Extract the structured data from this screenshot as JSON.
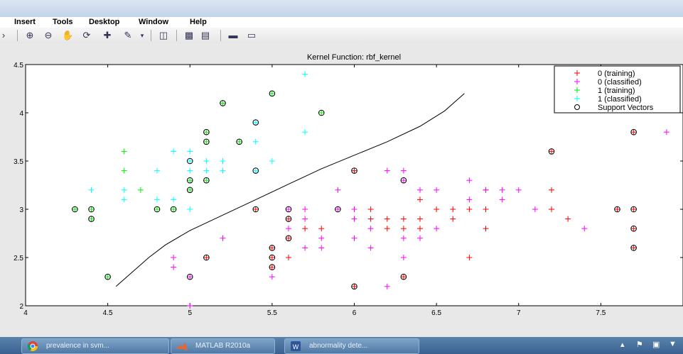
{
  "menu": {
    "items": [
      "Insert",
      "Tools",
      "Desktop",
      "Window",
      "Help"
    ]
  },
  "toolbar": {
    "icons": [
      "zoom-in-icon",
      "zoom-out-icon",
      "pan-hand-icon",
      "rotate-3d-icon",
      "data-cursor-icon",
      "brush-icon",
      "dropdown-arrow-icon",
      "link-plot-icon",
      "colorbar-icon",
      "legend-icon",
      "hide-plot-tools-icon",
      "show-plot-tools-icon"
    ]
  },
  "taskbar": {
    "items": [
      {
        "label": "prevalence in svm...",
        "icon": "chrome-icon"
      },
      {
        "label": "MATLAB R2010a",
        "icon": "matlab-icon"
      },
      {
        "label": "abnormality dete...",
        "icon": "word-icon"
      }
    ]
  },
  "colors": {
    "class0": "#ff0000",
    "class0_classified": "#ff00ff",
    "class1": "#00ee00",
    "class1_classified": "#00ffff",
    "support": "#000000"
  },
  "chart_data": {
    "type": "scatter",
    "title": "Kernel Function: rbf_kernel",
    "xlabel": "",
    "ylabel": "",
    "xlim": [
      4,
      8
    ],
    "ylim": [
      2,
      4.5
    ],
    "xticks": [
      4,
      4.5,
      5,
      5.5,
      6,
      6.5,
      7,
      7.5
    ],
    "yticks": [
      2,
      2.5,
      3,
      3.5,
      4,
      4.5
    ],
    "xtick_labels": [
      "4",
      "4.5",
      "5",
      "5.5",
      "6",
      "6.5",
      "7",
      "7.5"
    ],
    "ytick_labels": [
      "2",
      "2.5",
      "3",
      "3.5",
      "4",
      "4.5"
    ],
    "legend_position": "top-right",
    "series": [
      {
        "name": "0 (training)",
        "marker": "+",
        "color": "#ff0000",
        "points": [
          [
            5.1,
            2.5
          ],
          [
            5.4,
            3.0
          ],
          [
            5.5,
            2.4
          ],
          [
            5.5,
            2.5
          ],
          [
            5.5,
            2.6
          ],
          [
            5.6,
            2.5
          ],
          [
            5.6,
            2.7
          ],
          [
            5.6,
            2.9
          ],
          [
            5.7,
            2.8
          ],
          [
            5.8,
            2.8
          ],
          [
            6.0,
            2.2
          ],
          [
            6.0,
            3.4
          ],
          [
            6.1,
            2.9
          ],
          [
            6.1,
            3.0
          ],
          [
            6.2,
            2.8
          ],
          [
            6.2,
            2.9
          ],
          [
            6.3,
            2.3
          ],
          [
            6.3,
            2.8
          ],
          [
            6.3,
            2.9
          ],
          [
            6.4,
            2.8
          ],
          [
            6.4,
            2.9
          ],
          [
            6.4,
            3.1
          ],
          [
            6.5,
            3.0
          ],
          [
            6.6,
            2.9
          ],
          [
            6.6,
            3.0
          ],
          [
            6.7,
            2.5
          ],
          [
            6.7,
            3.0
          ],
          [
            6.8,
            2.8
          ],
          [
            6.8,
            3.0
          ],
          [
            6.8,
            3.2
          ],
          [
            7.2,
            3.0
          ],
          [
            7.2,
            3.2
          ],
          [
            7.2,
            3.6
          ],
          [
            7.3,
            2.9
          ],
          [
            7.6,
            3.0
          ],
          [
            7.7,
            2.6
          ],
          [
            7.7,
            2.8
          ],
          [
            7.7,
            3.0
          ],
          [
            7.7,
            3.8
          ]
        ]
      },
      {
        "name": "0 (classified)",
        "marker": "+",
        "color": "#ff00ff",
        "points": [
          [
            4.9,
            2.4
          ],
          [
            4.9,
            2.5
          ],
          [
            5.0,
            2.0
          ],
          [
            5.0,
            2.3
          ],
          [
            5.2,
            2.7
          ],
          [
            5.5,
            2.3
          ],
          [
            5.6,
            2.8
          ],
          [
            5.6,
            3.0
          ],
          [
            5.7,
            2.6
          ],
          [
            5.7,
            2.9
          ],
          [
            5.7,
            3.0
          ],
          [
            5.8,
            2.6
          ],
          [
            5.8,
            2.7
          ],
          [
            5.9,
            3.0
          ],
          [
            5.9,
            3.2
          ],
          [
            6.0,
            2.7
          ],
          [
            6.0,
            2.9
          ],
          [
            6.0,
            3.0
          ],
          [
            6.1,
            2.6
          ],
          [
            6.1,
            2.8
          ],
          [
            6.2,
            2.2
          ],
          [
            6.2,
            3.4
          ],
          [
            6.3,
            2.5
          ],
          [
            6.3,
            2.7
          ],
          [
            6.3,
            3.3
          ],
          [
            6.3,
            3.4
          ],
          [
            6.4,
            2.7
          ],
          [
            6.4,
            3.2
          ],
          [
            6.5,
            2.8
          ],
          [
            6.5,
            3.2
          ],
          [
            6.7,
            3.1
          ],
          [
            6.7,
            3.3
          ],
          [
            6.8,
            3.2
          ],
          [
            6.9,
            3.1
          ],
          [
            6.9,
            3.2
          ],
          [
            7.0,
            3.2
          ],
          [
            7.1,
            3.0
          ],
          [
            7.4,
            2.8
          ],
          [
            7.9,
            3.8
          ]
        ]
      },
      {
        "name": "1 (training)",
        "marker": "+",
        "color": "#00ee00",
        "points": [
          [
            4.3,
            3.0
          ],
          [
            4.4,
            2.9
          ],
          [
            4.4,
            3.0
          ],
          [
            4.5,
            2.3
          ],
          [
            4.6,
            3.4
          ],
          [
            4.6,
            3.6
          ],
          [
            4.7,
            3.2
          ],
          [
            4.8,
            3.0
          ],
          [
            4.9,
            3.0
          ],
          [
            5.0,
            3.2
          ],
          [
            5.0,
            3.3
          ],
          [
            5.1,
            3.3
          ],
          [
            5.1,
            3.7
          ],
          [
            5.1,
            3.8
          ],
          [
            5.2,
            4.1
          ],
          [
            5.3,
            3.7
          ],
          [
            5.5,
            4.2
          ],
          [
            5.8,
            4.0
          ]
        ]
      },
      {
        "name": "1 (classified)",
        "marker": "+",
        "color": "#00ffff",
        "points": [
          [
            4.4,
            3.2
          ],
          [
            4.6,
            3.1
          ],
          [
            4.6,
            3.2
          ],
          [
            4.8,
            3.1
          ],
          [
            4.8,
            3.4
          ],
          [
            4.9,
            3.1
          ],
          [
            4.9,
            3.6
          ],
          [
            5.0,
            3.0
          ],
          [
            5.0,
            3.4
          ],
          [
            5.0,
            3.5
          ],
          [
            5.0,
            3.6
          ],
          [
            5.1,
            3.4
          ],
          [
            5.1,
            3.5
          ],
          [
            5.2,
            3.4
          ],
          [
            5.2,
            3.5
          ],
          [
            5.4,
            3.4
          ],
          [
            5.4,
            3.7
          ],
          [
            5.4,
            3.9
          ],
          [
            5.5,
            3.5
          ],
          [
            5.7,
            3.8
          ],
          [
            5.7,
            4.4
          ]
        ]
      },
      {
        "name": "Support Vectors",
        "marker": "o",
        "color": "#000000",
        "points": [
          [
            4.3,
            3.0
          ],
          [
            4.4,
            2.9
          ],
          [
            4.4,
            3.0
          ],
          [
            4.5,
            2.3
          ],
          [
            4.8,
            3.0
          ],
          [
            4.9,
            3.0
          ],
          [
            5.0,
            3.2
          ],
          [
            5.0,
            3.3
          ],
          [
            5.1,
            3.3
          ],
          [
            5.1,
            3.7
          ],
          [
            5.1,
            3.8
          ],
          [
            5.2,
            4.1
          ],
          [
            5.3,
            3.7
          ],
          [
            5.5,
            4.2
          ],
          [
            5.8,
            4.0
          ],
          [
            5.0,
            3.5
          ],
          [
            5.4,
            3.4
          ],
          [
            5.4,
            3.9
          ],
          [
            5.0,
            2.3
          ],
          [
            5.1,
            2.5
          ],
          [
            5.4,
            3.0
          ],
          [
            5.5,
            2.4
          ],
          [
            5.5,
            2.5
          ],
          [
            5.5,
            2.6
          ],
          [
            5.6,
            2.7
          ],
          [
            5.6,
            2.9
          ],
          [
            5.6,
            3.0
          ],
          [
            5.9,
            3.0
          ],
          [
            6.0,
            2.2
          ],
          [
            6.0,
            3.4
          ],
          [
            6.3,
            2.3
          ],
          [
            6.3,
            3.3
          ],
          [
            7.2,
            3.6
          ],
          [
            7.6,
            3.0
          ],
          [
            7.7,
            2.6
          ],
          [
            7.7,
            2.8
          ],
          [
            7.7,
            3.0
          ],
          [
            7.7,
            3.8
          ]
        ]
      }
    ],
    "boundary": {
      "name": "decision boundary",
      "color": "#000000",
      "points": [
        [
          4.55,
          2.2
        ],
        [
          4.65,
          2.35
        ],
        [
          4.75,
          2.5
        ],
        [
          4.85,
          2.63
        ],
        [
          5.0,
          2.78
        ],
        [
          5.2,
          2.94
        ],
        [
          5.4,
          3.1
        ],
        [
          5.6,
          3.26
        ],
        [
          5.8,
          3.42
        ],
        [
          6.0,
          3.56
        ],
        [
          6.2,
          3.7
        ],
        [
          6.4,
          3.86
        ],
        [
          6.55,
          4.02
        ],
        [
          6.67,
          4.2
        ]
      ]
    }
  }
}
